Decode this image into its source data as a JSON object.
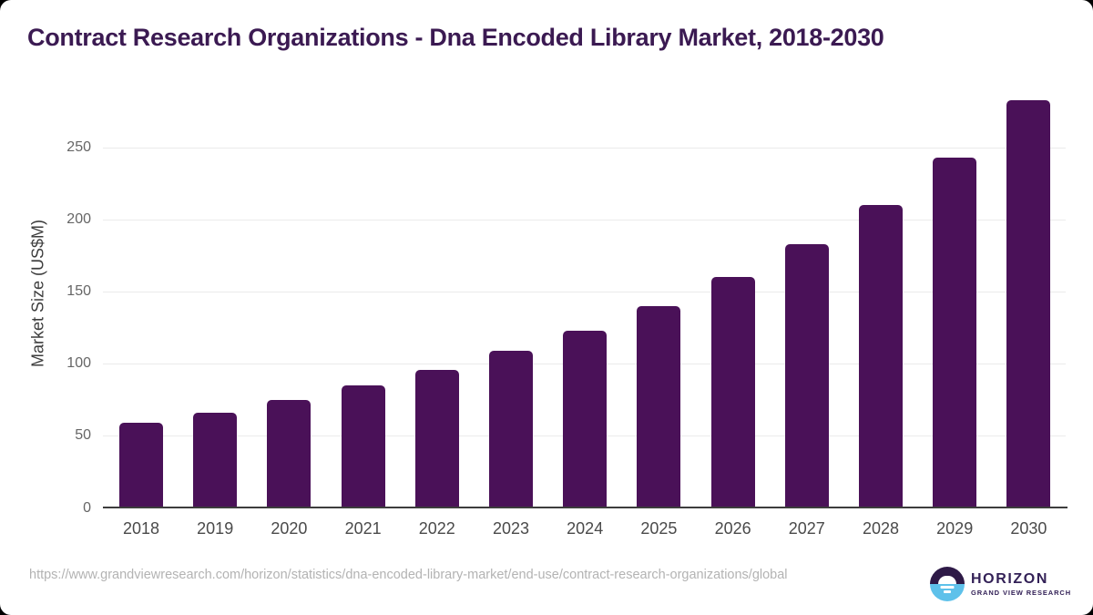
{
  "chart_data": {
    "type": "bar",
    "title": "Contract Research Organizations - Dna Encoded Library Market, 2018-2030",
    "categories": [
      "2018",
      "2019",
      "2020",
      "2021",
      "2022",
      "2023",
      "2024",
      "2025",
      "2026",
      "2027",
      "2028",
      "2029",
      "2030"
    ],
    "values": [
      59,
      66,
      75,
      85,
      96,
      109,
      123,
      140,
      160,
      183,
      210,
      243,
      283
    ],
    "xlabel": "",
    "ylabel": "Market Size (US$M)",
    "yticks": [
      0,
      50,
      100,
      150,
      200,
      250
    ],
    "ylim": [
      0,
      286
    ],
    "grid": "horizontal-only",
    "legend": "none",
    "bar_color": "#4a1158"
  },
  "colors": {
    "title_text": "#3b1a52",
    "bar": "#4a1158",
    "axis_line": "#3d3d3d",
    "gridline": "#ebebeb",
    "tick_text": "#666666",
    "xtick_text": "#4a4a4a",
    "url_text": "#b3b3b3",
    "logo_purple": "#2e1a47",
    "logo_blue": "#5ec1ea",
    "logo_text": "#332157"
  },
  "footer": {
    "source_url": "https://www.grandviewresearch.com/horizon/statistics/dna-encoded-library-market/end-use/contract-research-organizations/global",
    "logo": {
      "brand": "HORIZON",
      "subtitle": "GRAND VIEW RESEARCH"
    }
  }
}
